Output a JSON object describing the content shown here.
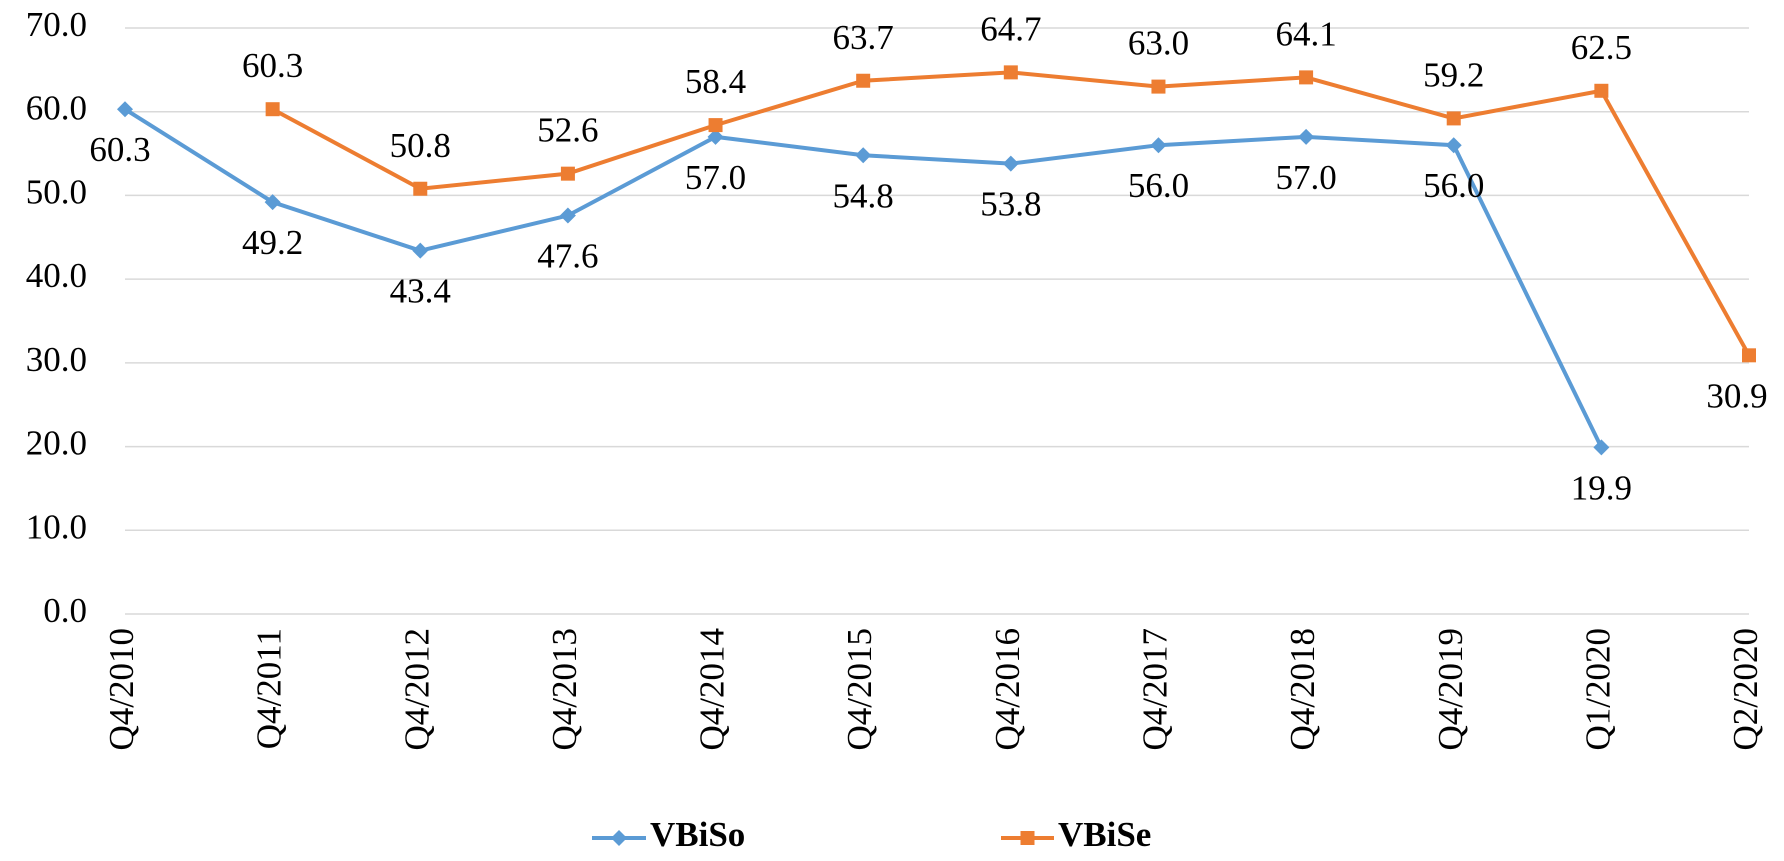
{
  "chart_data": {
    "type": "line",
    "categories": [
      "Q4/2010",
      "Q4/2011",
      "Q4/2012",
      "Q4/2013",
      "Q4/2014",
      "Q4/2015",
      "Q4/2016",
      "Q4/2017",
      "Q4/2018",
      "Q4/2019",
      "Q1/2020",
      "Q2/2020"
    ],
    "series": [
      {
        "name": "VBiSo",
        "color": "#5b9bd5",
        "marker": "diamond",
        "values": [
          60.3,
          49.2,
          43.4,
          47.6,
          57,
          54.8,
          53.8,
          56,
          57,
          56,
          19.9,
          null
        ],
        "value_labels": [
          "60.3",
          "49.2",
          "43.4",
          "47.6",
          "57.0",
          "54.8",
          "53.8",
          "56.0",
          "57.0",
          "56.0",
          "19.9",
          null
        ]
      },
      {
        "name": "VBiSe",
        "color": "#ed7d31",
        "marker": "square",
        "values": [
          null,
          60.3,
          50.8,
          52.6,
          58.4,
          63.7,
          64.7,
          63,
          64.1,
          59.2,
          62.5,
          30.9
        ],
        "value_labels": [
          null,
          "60.3",
          "50.8",
          "52.6",
          "58.4",
          "63.7",
          "64.7",
          "63.0",
          "64.1",
          "59.2",
          "62.5",
          "30.9"
        ]
      }
    ],
    "ylim": [
      0,
      70
    ],
    "yticks": [
      {
        "value": 0,
        "label": "0.0"
      },
      {
        "value": 10,
        "label": "10.0"
      },
      {
        "value": 20,
        "label": "20.0"
      },
      {
        "value": 30,
        "label": "30.0"
      },
      {
        "value": 40,
        "label": "40.0"
      },
      {
        "value": 50,
        "label": "50.0"
      },
      {
        "value": 60,
        "label": "60.0"
      },
      {
        "value": 70,
        "label": "70.0"
      }
    ],
    "grid": true,
    "legend": "bottom"
  }
}
